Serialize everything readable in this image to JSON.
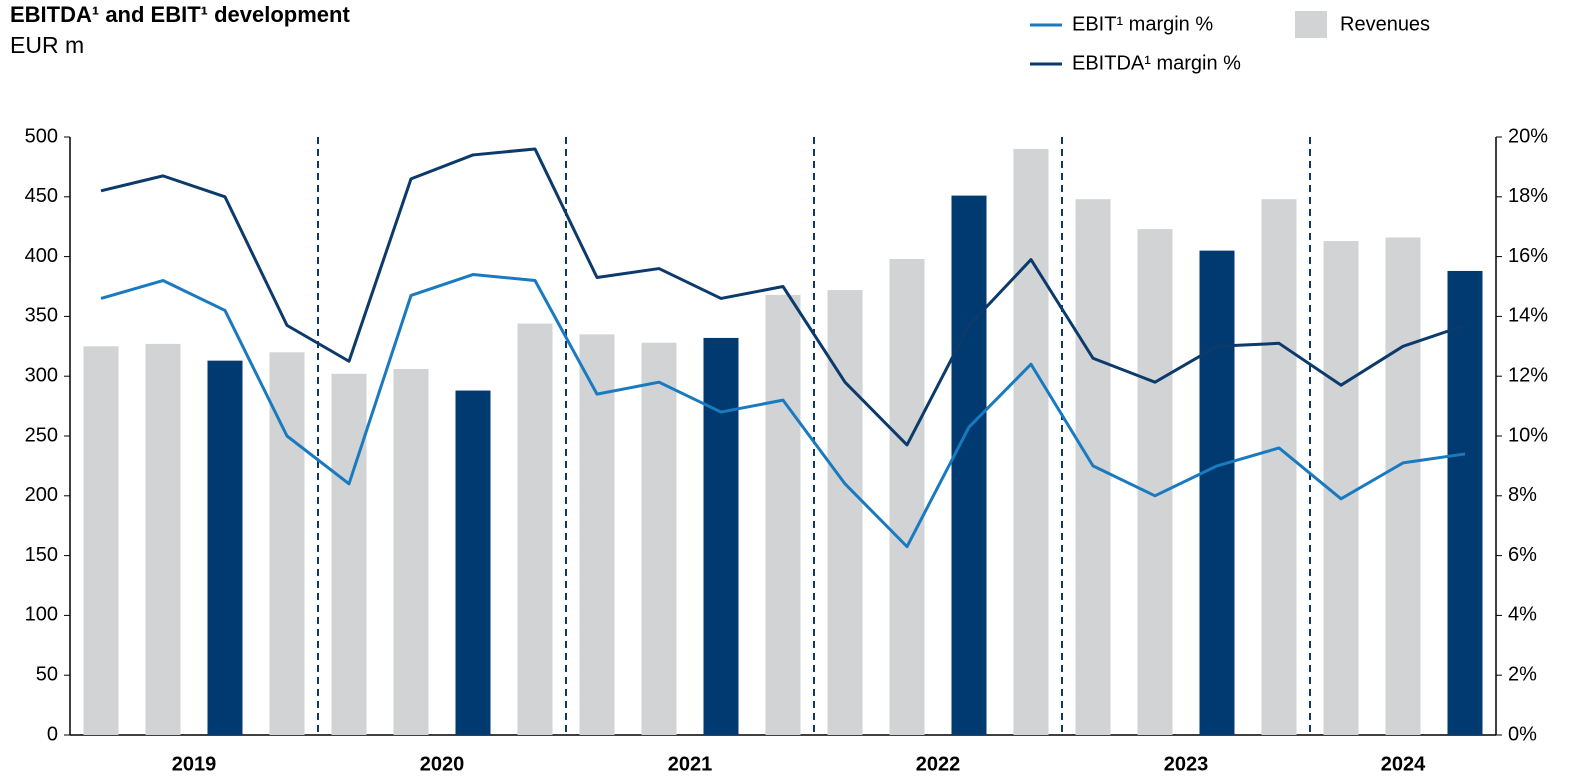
{
  "chart_data": {
    "type": "bar_line",
    "title": "EBITDA¹ and EBIT¹ development",
    "subtitle": "EUR m",
    "categories": [
      null,
      null,
      null,
      null,
      null,
      null,
      null,
      null,
      null,
      null,
      null,
      null,
      null,
      null,
      null,
      null,
      null,
      null,
      null,
      null,
      null,
      null,
      null
    ],
    "groups": [
      {
        "label": "2019",
        "size": 4
      },
      {
        "label": "2020",
        "size": 4
      },
      {
        "label": "2021",
        "size": 4
      },
      {
        "label": "2022",
        "size": 4
      },
      {
        "label": "2023",
        "size": 4
      },
      {
        "label": "2024",
        "size": 3
      }
    ],
    "series": [
      {
        "name": "Revenues",
        "type": "bar",
        "color": "#d1d3d5",
        "colors": [
          "#d1d3d5",
          "#d1d3d5",
          "#003a70",
          "#d1d3d5",
          "#d1d3d5",
          "#d1d3d5",
          "#003a70",
          "#d1d3d5",
          "#d1d3d5",
          "#d1d3d5",
          "#003a70",
          "#d1d3d5",
          "#d1d3d5",
          "#d1d3d5",
          "#003a70",
          "#d1d3d5",
          "#d1d3d5",
          "#d1d3d5",
          "#003a70",
          "#d1d3d5",
          "#d1d3d5",
          "#d1d3d5",
          "#003a70"
        ],
        "values": [
          325,
          327,
          313,
          320,
          302,
          306,
          288,
          344,
          335,
          328,
          332,
          368,
          372,
          398,
          451,
          490,
          448,
          423,
          405,
          448,
          413,
          416,
          388
        ]
      },
      {
        "name": "EBIT¹ margin %",
        "type": "line",
        "axis": "y2",
        "color": "#1a7abf",
        "values": [
          14.6,
          15.2,
          14.2,
          10.0,
          8.4,
          14.7,
          15.4,
          15.2,
          11.4,
          11.8,
          10.8,
          11.2,
          8.4,
          6.3,
          10.3,
          12.4,
          9.0,
          8.0,
          9.0,
          9.6,
          7.9,
          9.1,
          9.4
        ]
      },
      {
        "name": "EBITDA¹ margin %",
        "type": "line",
        "axis": "y2",
        "color": "#0b3a6b",
        "values": [
          18.2,
          18.7,
          18.0,
          13.7,
          12.5,
          18.6,
          19.4,
          19.6,
          15.3,
          15.6,
          14.6,
          15.0,
          11.8,
          9.7,
          13.7,
          15.9,
          12.6,
          11.8,
          13.0,
          13.1,
          11.7,
          13.0,
          13.7
        ]
      }
    ],
    "ylim": [
      0,
      500
    ],
    "yticks": [
      0,
      50,
      100,
      150,
      200,
      250,
      300,
      350,
      400,
      450,
      500
    ],
    "y2lim": [
      0,
      20
    ],
    "y2ticks": [
      {
        "value": 0,
        "label": "0%"
      },
      {
        "value": 2,
        "label": "2%"
      },
      {
        "value": 4,
        "label": "4%"
      },
      {
        "value": 6,
        "label": "6%"
      },
      {
        "value": 8,
        "label": "8%"
      },
      {
        "value": 10,
        "label": "10%"
      },
      {
        "value": 12,
        "label": "12%"
      },
      {
        "value": 14,
        "label": "14%"
      },
      {
        "value": 16,
        "label": "16%"
      },
      {
        "value": 18,
        "label": "18%"
      },
      {
        "value": 20,
        "label": "20%"
      }
    ],
    "grid": false
  }
}
